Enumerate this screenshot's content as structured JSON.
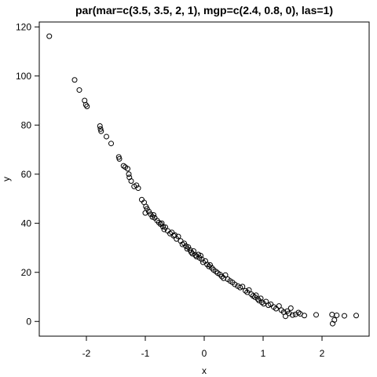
{
  "chart_data": {
    "type": "scatter",
    "title": "par(mar=c(3.5, 3.5, 2, 1), mgp=c(2.4, 0.8, 0), las=1)",
    "xlabel": "x",
    "ylabel": "y",
    "xlim": [
      -2.8,
      2.8
    ],
    "ylim": [
      -6,
      122
    ],
    "x_ticks": [
      -2,
      -1,
      0,
      1,
      2
    ],
    "y_ticks": [
      0,
      20,
      40,
      60,
      80,
      100,
      120
    ],
    "grid": false,
    "marker": "open-circle",
    "series": [
      {
        "points": [
          [
            -2.63,
            116.2
          ],
          [
            -2.2,
            98.4
          ],
          [
            -2.12,
            94.3
          ],
          [
            -2.03,
            90.0
          ],
          [
            -2.01,
            88.3
          ],
          [
            -1.99,
            87.6
          ],
          [
            -1.77,
            79.6
          ],
          [
            -1.76,
            78.4
          ],
          [
            -1.75,
            77.5
          ],
          [
            -1.66,
            75.3
          ],
          [
            -1.58,
            72.5
          ],
          [
            -1.45,
            67.0
          ],
          [
            -1.44,
            66.2
          ],
          [
            -1.37,
            63.4
          ],
          [
            -1.34,
            62.9
          ],
          [
            -1.3,
            62.2
          ],
          [
            -1.28,
            60.0
          ],
          [
            -1.27,
            58.7
          ],
          [
            -1.24,
            57.2
          ],
          [
            -1.19,
            55.0
          ],
          [
            -1.15,
            55.5
          ],
          [
            -1.12,
            54.3
          ],
          [
            -1.06,
            49.6
          ],
          [
            -1.02,
            48.5
          ],
          [
            -0.99,
            46.8
          ],
          [
            -1.0,
            44.2
          ],
          [
            -0.97,
            45.9
          ],
          [
            -0.94,
            44.8
          ],
          [
            -0.91,
            43.7
          ],
          [
            -0.88,
            42.6
          ],
          [
            -0.86,
            43.4
          ],
          [
            -0.84,
            42.2
          ],
          [
            -0.8,
            41.1
          ],
          [
            -0.77,
            40.3
          ],
          [
            -0.74,
            39.6
          ],
          [
            -0.72,
            40.0
          ],
          [
            -0.7,
            38.6
          ],
          [
            -0.68,
            37.5
          ],
          [
            -0.66,
            38.4
          ],
          [
            -0.62,
            36.9
          ],
          [
            -0.58,
            35.8
          ],
          [
            -0.55,
            36.3
          ],
          [
            -0.52,
            34.9
          ],
          [
            -0.5,
            35.2
          ],
          [
            -0.47,
            33.6
          ],
          [
            -0.44,
            34.6
          ],
          [
            -0.4,
            32.8
          ],
          [
            -0.37,
            31.4
          ],
          [
            -0.34,
            31.8
          ],
          [
            -0.31,
            30.7
          ],
          [
            -0.29,
            29.6
          ],
          [
            -0.27,
            30.3
          ],
          [
            -0.24,
            29.1
          ],
          [
            -0.22,
            28.2
          ],
          [
            -0.2,
            27.6
          ],
          [
            -0.18,
            28.7
          ],
          [
            -0.15,
            27.0
          ],
          [
            -0.13,
            26.4
          ],
          [
            -0.1,
            27.3
          ],
          [
            -0.08,
            25.9
          ],
          [
            -0.06,
            26.8
          ],
          [
            -0.04,
            25.3
          ],
          [
            -0.02,
            24.1
          ],
          [
            0.02,
            24.6
          ],
          [
            0.05,
            23.2
          ],
          [
            0.08,
            22.4
          ],
          [
            0.1,
            23.0
          ],
          [
            0.13,
            21.8
          ],
          [
            0.16,
            21.0
          ],
          [
            0.2,
            20.3
          ],
          [
            0.23,
            19.7
          ],
          [
            0.27,
            19.1
          ],
          [
            0.3,
            18.3
          ],
          [
            0.33,
            17.6
          ],
          [
            0.36,
            18.9
          ],
          [
            0.4,
            17.2
          ],
          [
            0.44,
            16.5
          ],
          [
            0.48,
            15.9
          ],
          [
            0.52,
            15.1
          ],
          [
            0.57,
            14.4
          ],
          [
            0.61,
            13.8
          ],
          [
            0.65,
            14.2
          ],
          [
            0.7,
            12.5
          ],
          [
            0.73,
            11.9
          ],
          [
            0.76,
            12.8
          ],
          [
            0.8,
            11.1
          ],
          [
            0.83,
            10.4
          ],
          [
            0.86,
            9.9
          ],
          [
            0.88,
            10.7
          ],
          [
            0.91,
            9.1
          ],
          [
            0.93,
            8.5
          ],
          [
            0.96,
            9.4
          ],
          [
            0.98,
            7.8
          ],
          [
            1.01,
            7.2
          ],
          [
            1.05,
            8.1
          ],
          [
            1.09,
            6.6
          ],
          [
            1.13,
            7.0
          ],
          [
            1.18,
            5.9
          ],
          [
            1.22,
            5.2
          ],
          [
            1.27,
            6.3
          ],
          [
            1.31,
            4.6
          ],
          [
            1.35,
            3.8
          ],
          [
            1.38,
            2.1
          ],
          [
            1.41,
            4.2
          ],
          [
            1.44,
            3.3
          ],
          [
            1.47,
            5.4
          ],
          [
            1.5,
            2.6
          ],
          [
            1.55,
            2.9
          ],
          [
            1.6,
            3.6
          ],
          [
            1.63,
            3.1
          ],
          [
            1.7,
            2.4
          ],
          [
            1.9,
            2.7
          ],
          [
            2.17,
            2.8
          ],
          [
            2.18,
            -0.9
          ],
          [
            2.21,
            0.6
          ],
          [
            2.25,
            2.5
          ],
          [
            2.38,
            2.3
          ],
          [
            2.58,
            2.4
          ]
        ]
      }
    ]
  }
}
